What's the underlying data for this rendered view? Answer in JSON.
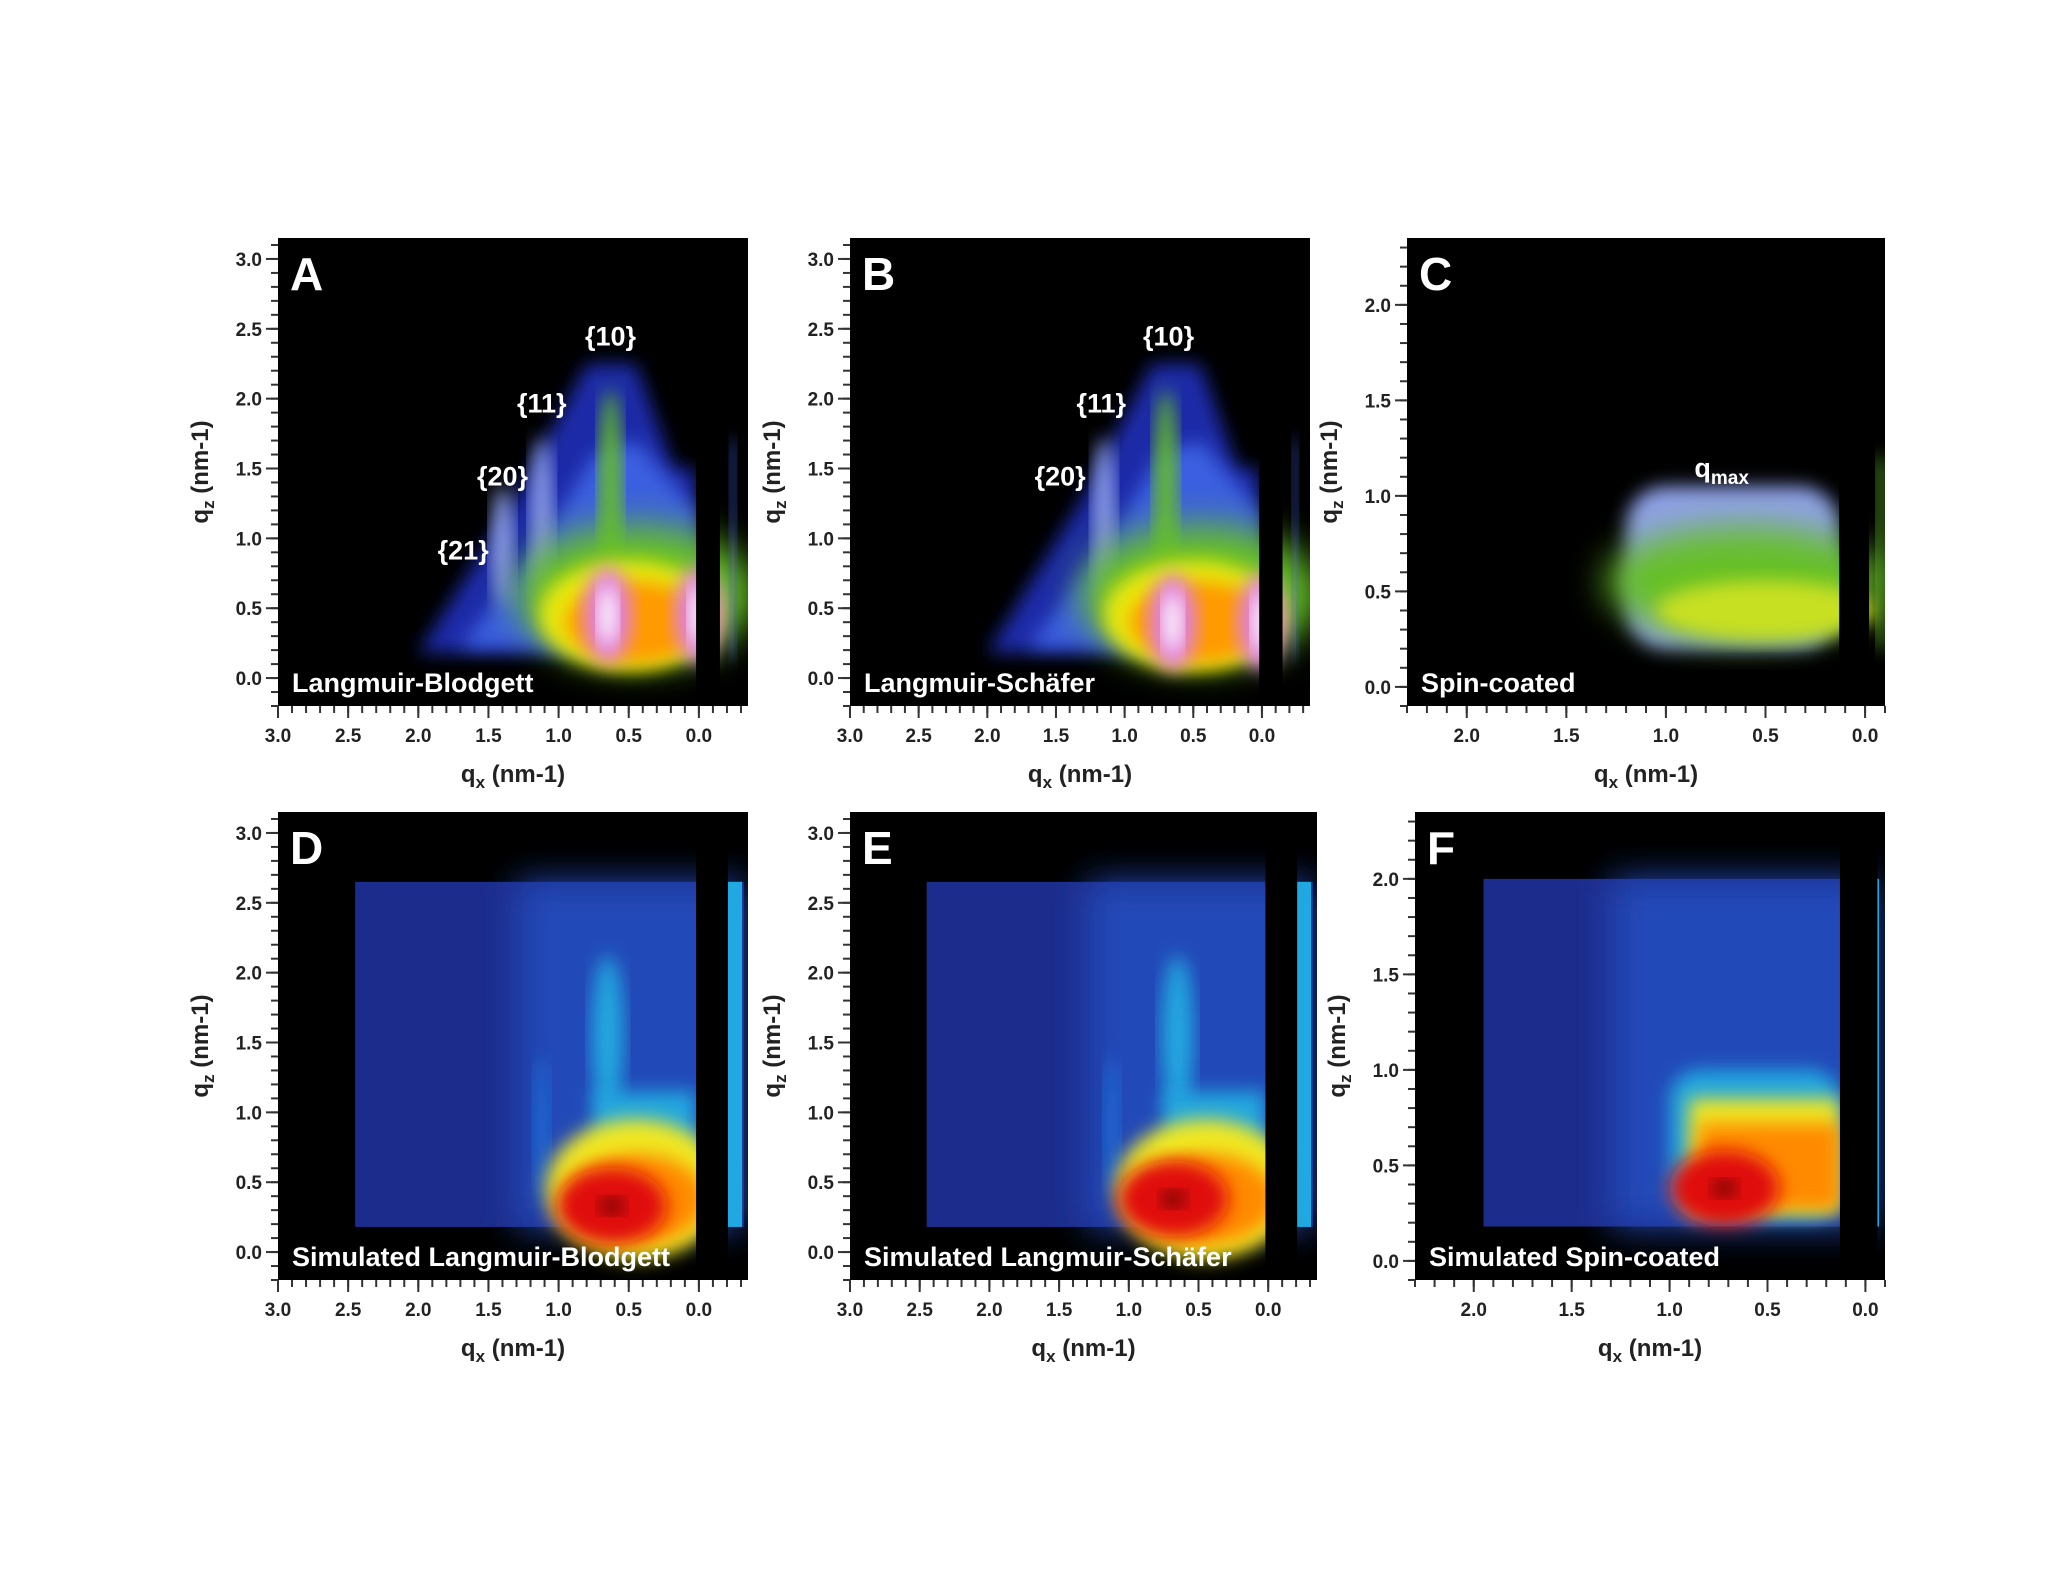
{
  "chart_data": [
    {
      "panel": "A",
      "type": "heatmap",
      "variant": "measured",
      "caption": "Langmuir-Blodgett",
      "xlabel": "q",
      "xlabel_sub": "x",
      "xlabel_unit": " (nm-1)",
      "ylabel": "q",
      "ylabel_sub": "z",
      "ylabel_unit": " (nm-1)",
      "xlim": [
        3.0,
        -0.35
      ],
      "ylim": [
        -0.2,
        3.15
      ],
      "x_ticks": [
        3.0,
        2.5,
        2.0,
        1.5,
        1.0,
        0.5,
        0.0
      ],
      "x_tick_labels": [
        "3.0",
        "2.5",
        "2.0",
        "1.5",
        "1.0",
        "0.5",
        "0.0"
      ],
      "y_ticks": [
        0.0,
        0.5,
        1.0,
        1.5,
        2.0,
        2.5,
        3.0
      ],
      "y_tick_labels": [
        "0.0",
        "0.5",
        "1.0",
        "1.5",
        "2.0",
        "2.5",
        "3.0"
      ],
      "beamstop_qx": [
        -0.15,
        0.02
      ],
      "hot_spots": [
        {
          "qx": 0.65,
          "qz": 0.45
        },
        {
          "qx": 0.0,
          "qz": 0.45
        }
      ],
      "peak_labels": [
        {
          "text": "{10}",
          "qx": 0.63,
          "qz": 2.38
        },
        {
          "text": "{11}",
          "qx": 1.12,
          "qz": 1.9
        },
        {
          "text": "{20}",
          "qx": 1.4,
          "qz": 1.38
        },
        {
          "text": "{21}",
          "qx": 1.68,
          "qz": 0.85
        }
      ],
      "colors": [
        "#000000",
        "#1a2aa8",
        "#3a5fe0",
        "#8fa0e8",
        "#66c028",
        "#e8e80a",
        "#ff9a00",
        "#e080e0",
        "#ffffff"
      ]
    },
    {
      "panel": "B",
      "type": "heatmap",
      "variant": "measured",
      "caption": "Langmuir-Schäfer",
      "xlabel": "q",
      "xlabel_sub": "x",
      "xlabel_unit": " (nm-1)",
      "ylabel": "q",
      "ylabel_sub": "z",
      "ylabel_unit": " (nm-1)",
      "xlim": [
        3.0,
        -0.35
      ],
      "ylim": [
        -0.2,
        3.15
      ],
      "x_ticks": [
        3.0,
        2.5,
        2.0,
        1.5,
        1.0,
        0.5,
        0.0
      ],
      "x_tick_labels": [
        "3.0",
        "2.5",
        "2.0",
        "1.5",
        "1.0",
        "0.5",
        "0.0"
      ],
      "y_ticks": [
        0.0,
        0.5,
        1.0,
        1.5,
        2.0,
        2.5,
        3.0
      ],
      "y_tick_labels": [
        "0.0",
        "0.5",
        "1.0",
        "1.5",
        "2.0",
        "2.5",
        "3.0"
      ],
      "beamstop_qx": [
        -0.15,
        0.02
      ],
      "hot_spots": [
        {
          "qx": 0.65,
          "qz": 0.4
        },
        {
          "qx": 0.0,
          "qz": 0.4
        }
      ],
      "peak_labels": [
        {
          "text": "{10}",
          "qx": 0.68,
          "qz": 2.38
        },
        {
          "text": "{11}",
          "qx": 1.17,
          "qz": 1.9
        },
        {
          "text": "{20}",
          "qx": 1.47,
          "qz": 1.38
        }
      ],
      "colors": [
        "#000000",
        "#1a2aa8",
        "#3a5fe0",
        "#8fa0e8",
        "#66c028",
        "#e8e80a",
        "#ff9a00",
        "#e080e0",
        "#ffffff"
      ]
    },
    {
      "panel": "C",
      "type": "heatmap",
      "variant": "measured",
      "caption": "Spin-coated",
      "xlabel": "q",
      "xlabel_sub": "x",
      "xlabel_unit": " (nm-1)",
      "ylabel": "q",
      "ylabel_sub": "z",
      "ylabel_unit": " (nm-1)",
      "xlim": [
        2.3,
        -0.1
      ],
      "ylim": [
        -0.1,
        2.35
      ],
      "x_ticks": [
        2.0,
        1.5,
        1.0,
        0.5,
        0.0
      ],
      "x_tick_labels": [
        "2.0",
        "1.5",
        "1.0",
        "0.5",
        "0.0"
      ],
      "y_ticks": [
        0.0,
        0.5,
        1.0,
        1.5,
        2.0
      ],
      "y_tick_labels": [
        "0.0",
        "0.5",
        "1.0",
        "1.5",
        "2.0"
      ],
      "beamstop_qx": [
        -0.02,
        0.13
      ],
      "hot_spots": [],
      "peak_labels": [
        {
          "text": "q",
          "sub": "max",
          "qx": 0.72,
          "qz": 1.1
        }
      ],
      "colors": [
        "#000000",
        "#1a2aa8",
        "#3a5fe0",
        "#8fa0e8",
        "#66c028",
        "#c8e020",
        "#f0c000"
      ]
    },
    {
      "panel": "D",
      "type": "heatmap",
      "variant": "simulated",
      "caption": "Simulated Langmuir-Blodgett",
      "xlabel": "q",
      "xlabel_sub": "x",
      "xlabel_unit": " (nm-1)",
      "ylabel": "q",
      "ylabel_sub": "z",
      "ylabel_unit": " (nm-1)",
      "xlim": [
        3.0,
        -0.35
      ],
      "ylim": [
        -0.2,
        3.15
      ],
      "x_ticks": [
        3.0,
        2.5,
        2.0,
        1.5,
        1.0,
        0.5,
        0.0
      ],
      "x_tick_labels": [
        "3.0",
        "2.5",
        "2.0",
        "1.5",
        "1.0",
        "0.5",
        "0.0"
      ],
      "y_ticks": [
        0.0,
        0.5,
        1.0,
        1.5,
        2.0,
        2.5,
        3.0
      ],
      "y_tick_labels": [
        "0.0",
        "0.5",
        "1.0",
        "1.5",
        "2.0",
        "2.5",
        "3.0"
      ],
      "sim_extent_qx": [
        2.45,
        -0.32
      ],
      "sim_extent_qz": [
        0.18,
        2.65
      ],
      "beamstop_qx": [
        -0.15,
        0.02
      ],
      "hot_spots": [
        {
          "qx": 0.62,
          "qz": 0.33
        }
      ],
      "peak_labels": [],
      "colors": [
        "#1c2c8c",
        "#2348b8",
        "#1f6ed8",
        "#20a8e0",
        "#20d8c8",
        "#f0e820",
        "#ff8a00",
        "#e01010",
        "#600000"
      ]
    },
    {
      "panel": "E",
      "type": "heatmap",
      "variant": "simulated",
      "caption": "Simulated Langmuir-Schäfer",
      "xlabel": "q",
      "xlabel_sub": "x",
      "xlabel_unit": " (nm-1)",
      "ylabel": "q",
      "ylabel_sub": "z",
      "ylabel_unit": " (nm-1)",
      "xlim": [
        3.0,
        -0.35
      ],
      "ylim": [
        -0.2,
        3.15
      ],
      "x_ticks": [
        3.0,
        2.5,
        2.0,
        1.5,
        1.0,
        0.5,
        0.0
      ],
      "x_tick_labels": [
        "3.0",
        "2.5",
        "2.0",
        "1.5",
        "1.0",
        "0.5",
        "0.0"
      ],
      "y_ticks": [
        0.0,
        0.5,
        1.0,
        1.5,
        2.0,
        2.5,
        3.0
      ],
      "y_tick_labels": [
        "0.0",
        "0.5",
        "1.0",
        "1.5",
        "2.0",
        "2.5",
        "3.0"
      ],
      "sim_extent_qx": [
        2.45,
        -0.32
      ],
      "sim_extent_qz": [
        0.18,
        2.65
      ],
      "beamstop_qx": [
        -0.15,
        0.02
      ],
      "hot_spots": [
        {
          "qx": 0.68,
          "qz": 0.38
        }
      ],
      "peak_labels": [],
      "colors": [
        "#1c2c8c",
        "#2348b8",
        "#1f6ed8",
        "#20a8e0",
        "#20d8c8",
        "#f0e820",
        "#ff8a00",
        "#e01010",
        "#600000"
      ]
    },
    {
      "panel": "F",
      "type": "heatmap",
      "variant": "simulated",
      "caption": "Simulated Spin-coated",
      "xlabel": "q",
      "xlabel_sub": "x",
      "xlabel_unit": " (nm-1)",
      "ylabel": "q",
      "ylabel_sub": "z",
      "ylabel_unit": " (nm-1)",
      "xlim": [
        2.3,
        -0.1
      ],
      "ylim": [
        -0.1,
        2.35
      ],
      "x_ticks": [
        2.0,
        1.5,
        1.0,
        0.5,
        0.0
      ],
      "x_tick_labels": [
        "2.0",
        "1.5",
        "1.0",
        "0.5",
        "0.0"
      ],
      "y_ticks": [
        0.0,
        0.5,
        1.0,
        1.5,
        2.0
      ],
      "y_tick_labels": [
        "0.0",
        "0.5",
        "1.0",
        "1.5",
        "2.0"
      ],
      "sim_extent_qx": [
        1.95,
        -0.05
      ],
      "sim_extent_qz": [
        0.18,
        2.0
      ],
      "beamstop_qx": [
        -0.02,
        0.13
      ],
      "hot_spots": [
        {
          "qx": 0.72,
          "qz": 0.38
        }
      ],
      "peak_labels": [],
      "colors": [
        "#1c2c8c",
        "#2348b8",
        "#1f6ed8",
        "#20a8e0",
        "#20d8c8",
        "#f0e820",
        "#ff8a00",
        "#e01010",
        "#600000"
      ]
    }
  ]
}
